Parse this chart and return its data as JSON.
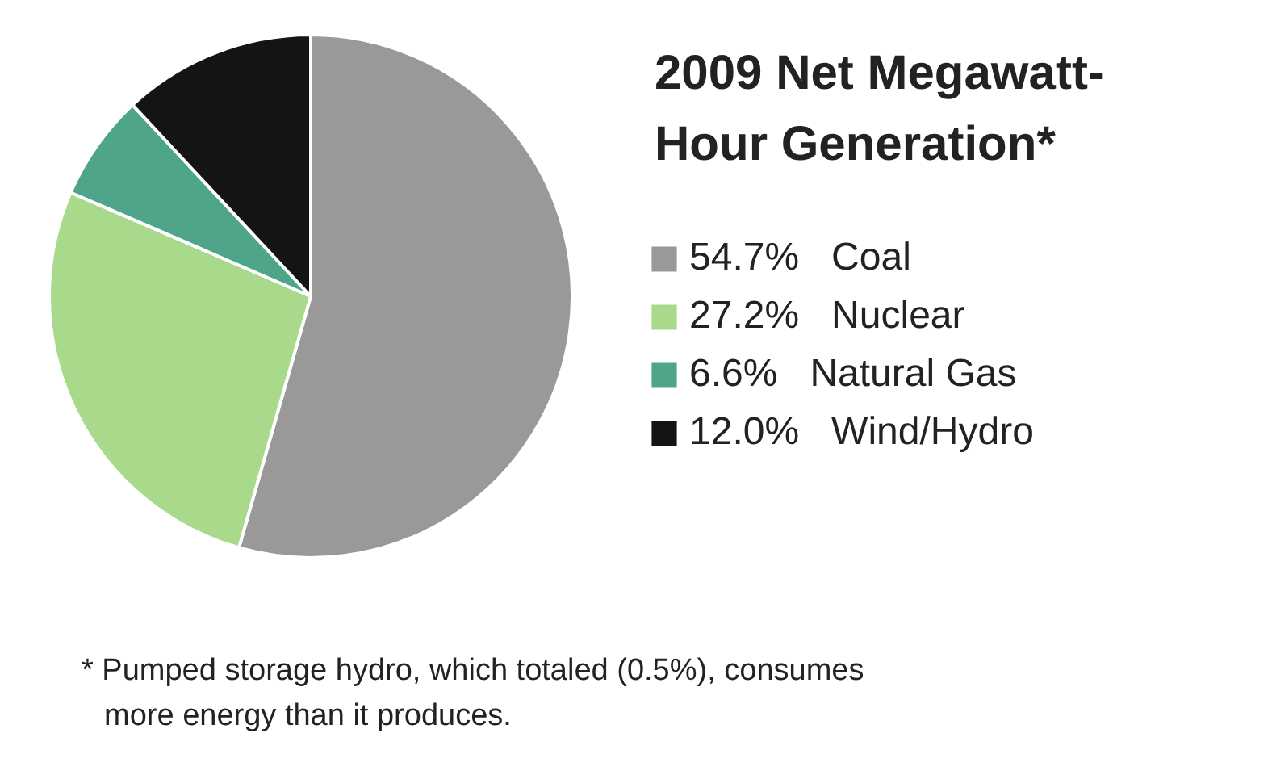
{
  "chart_data": {
    "type": "pie",
    "title": "2009 Net Megawatt-Hour Generation*",
    "categories": [
      "Coal",
      "Nuclear",
      "Natural Gas",
      "Wind/Hydro"
    ],
    "values": [
      54.7,
      27.2,
      6.6,
      12.0
    ],
    "value_labels": [
      "54.7%",
      "27.2%",
      "6.6%",
      "12.0%"
    ],
    "colors": [
      "#999999",
      "#a9d98b",
      "#4fa58a",
      "#141414"
    ],
    "legend": "right",
    "annotations": [
      "* Pumped storage hydro, which totaled (0.5%), consumes more energy than it produces."
    ]
  }
}
